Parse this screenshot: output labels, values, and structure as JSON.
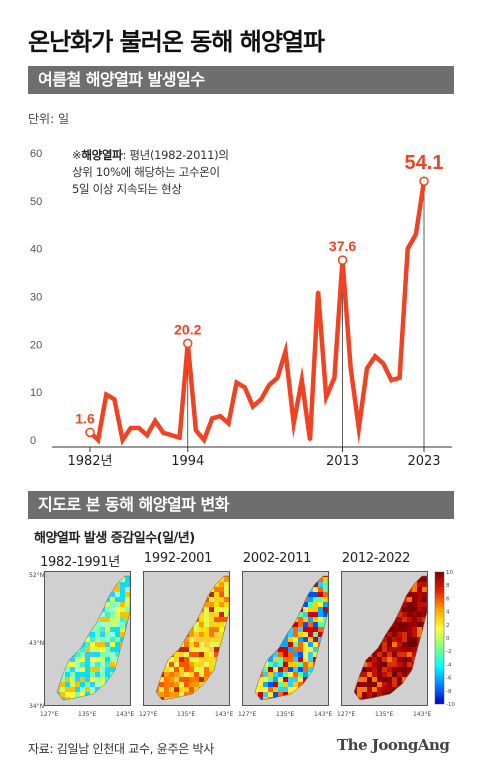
{
  "title": "온난화가 불러온 동해 해양열파",
  "section1": "여름철 해양열파 발생일수",
  "unit": "단위: 일",
  "note": {
    "mark": "※",
    "term": "해양열파",
    "line1": ": 평년(1982-2011)의",
    "line2": "상위 10%에 해당하는 고수온이",
    "line3": "5일 이상 지속되는 현상"
  },
  "chart_data": {
    "type": "line",
    "title": "여름철 해양열파 발생일수",
    "ylabel": "단위: 일",
    "ylim": [
      0,
      60
    ],
    "yticks": [
      0,
      10,
      20,
      30,
      40,
      50,
      60
    ],
    "x_tick_labels": [
      {
        "year": 1982,
        "label": "1982년"
      },
      {
        "year": 1994,
        "label": "1994"
      },
      {
        "year": 2013,
        "label": "2013"
      },
      {
        "year": 2023,
        "label": "2023"
      }
    ],
    "grid": false,
    "line_color": "#ee4423",
    "x": [
      1982,
      1983,
      1984,
      1985,
      1986,
      1987,
      1988,
      1989,
      1990,
      1991,
      1992,
      1993,
      1994,
      1995,
      1996,
      1997,
      1998,
      1999,
      2000,
      2001,
      2002,
      2003,
      2004,
      2005,
      2006,
      2007,
      2008,
      2009,
      2010,
      2011,
      2012,
      2013,
      2014,
      2015,
      2016,
      2017,
      2018,
      2019,
      2020,
      2021,
      2022,
      2023
    ],
    "values": [
      1.6,
      0,
      9.5,
      8.5,
      0,
      2.5,
      2.5,
      1,
      4,
      1.5,
      1,
      0.5,
      20.2,
      2,
      0,
      4.5,
      5,
      3.5,
      12,
      11,
      7,
      8.5,
      11.5,
      13,
      18.5,
      3.5,
      12.5,
      0,
      31,
      9,
      13,
      37.6,
      15,
      2.5,
      15,
      17.5,
      16,
      12.5,
      13,
      40,
      43,
      54.1
    ],
    "labeled_points": [
      {
        "year": 1982,
        "value": 1.6,
        "label": "1.6"
      },
      {
        "year": 1994,
        "value": 20.2,
        "label": "20.2"
      },
      {
        "year": 2013,
        "value": 37.6,
        "label": "37.6"
      },
      {
        "year": 2023,
        "value": 54.1,
        "label": "54.1"
      }
    ]
  },
  "section2": "지도로 본 동해 해양열파 변화",
  "map_title": "해양열파 발생 증감일수(일/년)",
  "maps": [
    {
      "label": "1982-1991년",
      "palette": "cool"
    },
    {
      "label": "1992-2001",
      "palette": "mixed"
    },
    {
      "label": "2002-2011",
      "palette": "mixed2"
    },
    {
      "label": "2012-2022",
      "palette": "hot"
    }
  ],
  "map_axes": {
    "lat_ticks": [
      "52°N",
      "43°N",
      "34°N"
    ],
    "lon_ticks": [
      "127°E",
      "135°E",
      "143°E"
    ]
  },
  "colorbar": {
    "ticks": [
      "10",
      "8",
      "6",
      "4",
      "2",
      "0",
      "-2",
      "-4",
      "-6",
      "-8",
      "-10"
    ],
    "colors": [
      "#7f0000",
      "#e81e00",
      "#ffa500",
      "#ffff33",
      "#7fff7f",
      "#00ffff",
      "#0080ff",
      "#0000c8"
    ]
  },
  "source": "자료: 김일남 인천대 교수, 윤주은 박사",
  "logo": "The JoongAng"
}
